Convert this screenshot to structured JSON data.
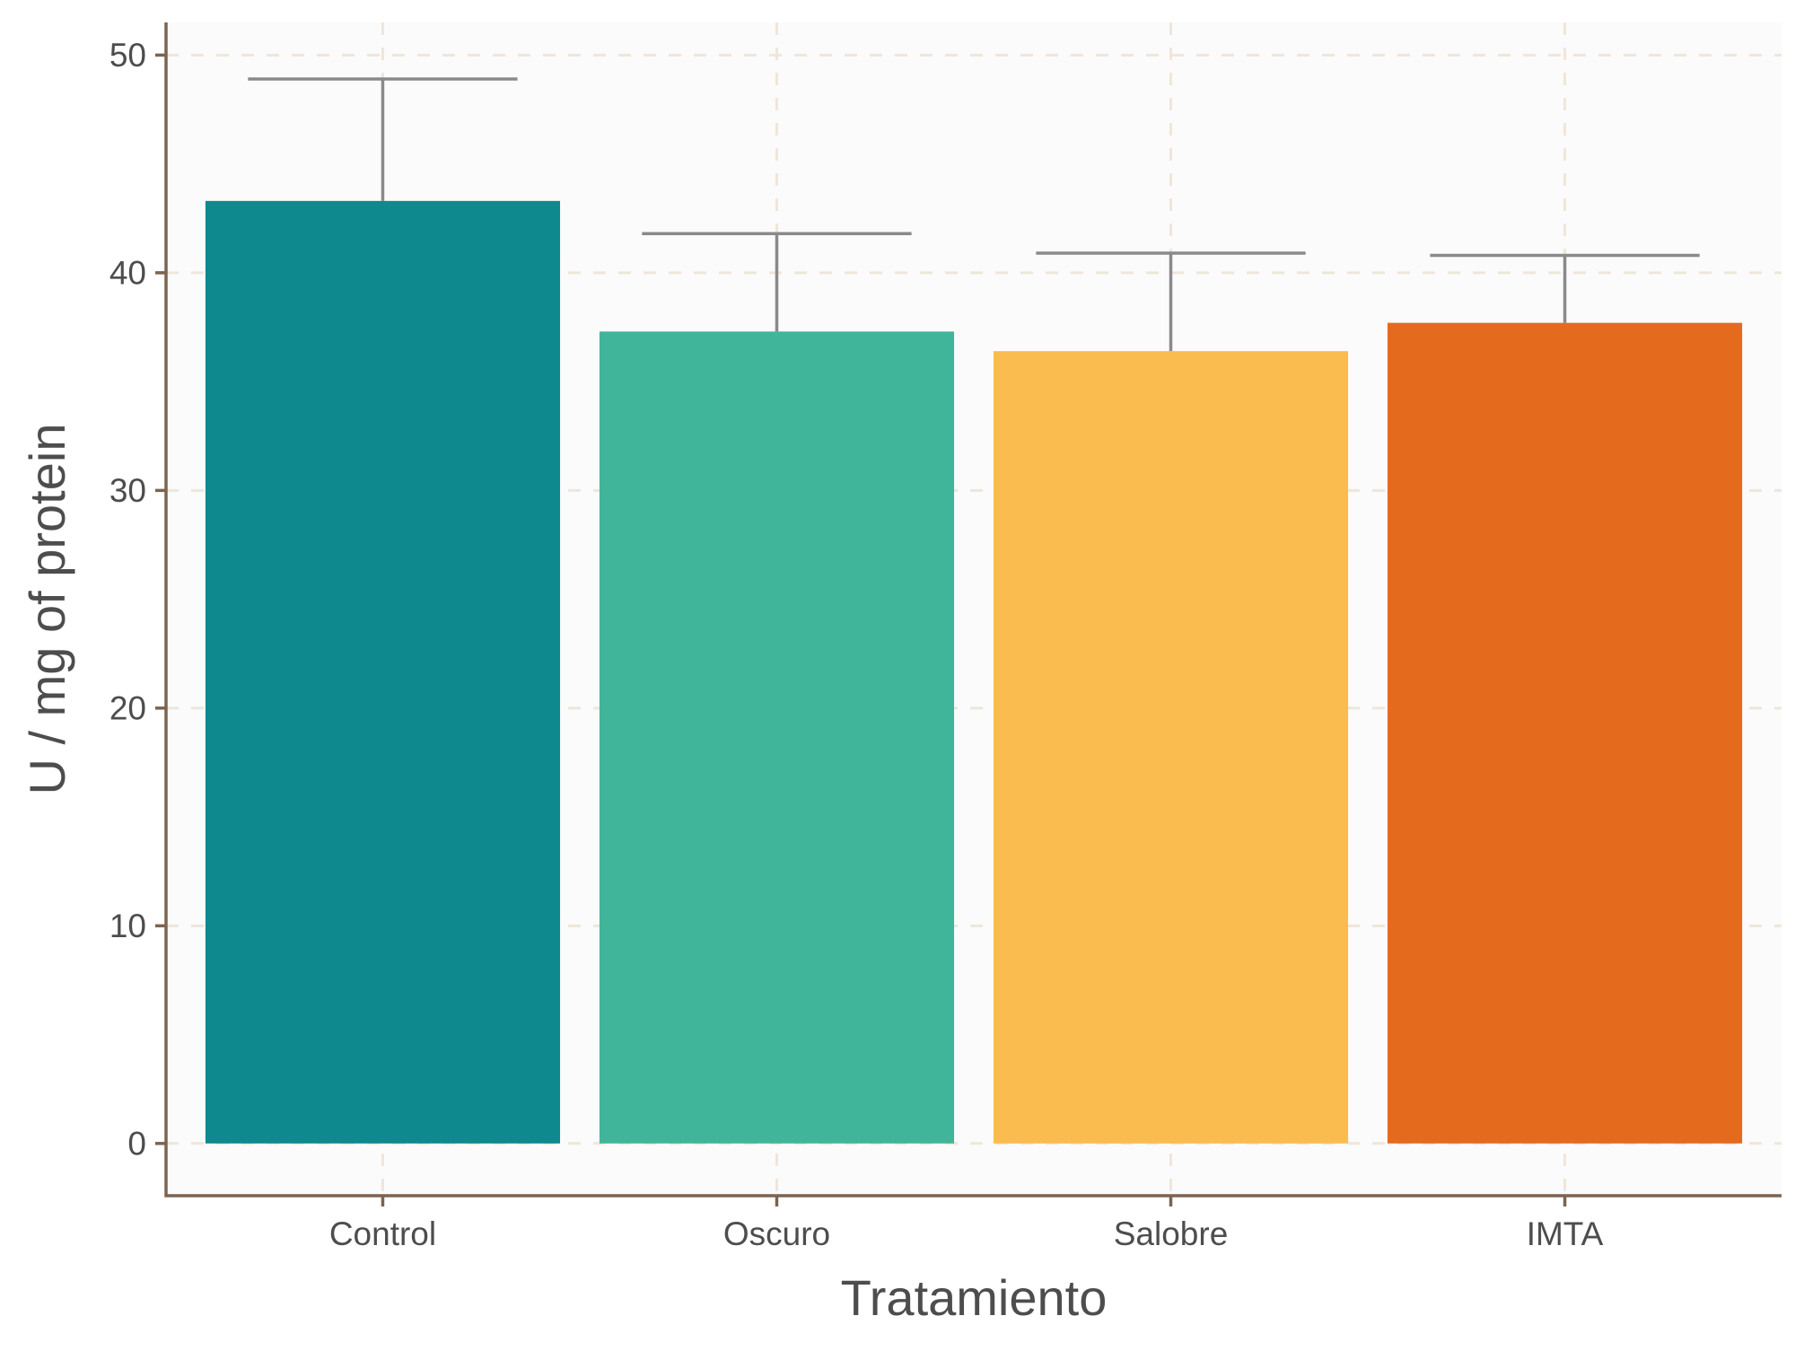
{
  "chart_data": {
    "type": "bar",
    "xlabel": "Tratamiento",
    "ylabel": "U / mg  of protein",
    "categories": [
      "Control",
      "Oscuro",
      "Salobre",
      "IMTA"
    ],
    "values": [
      43.3,
      37.3,
      36.4,
      37.7
    ],
    "error_upper": [
      48.9,
      41.8,
      40.9,
      40.8
    ],
    "colors": [
      "#0E898E",
      "#41B59A",
      "#FBBC4F",
      "#E46A1E"
    ],
    "ylim": [
      -2.4,
      51.5
    ],
    "yticks": [
      0,
      10,
      20,
      30,
      40,
      50
    ],
    "grid": true,
    "grid_style": "dashed",
    "legend": "none",
    "style": {
      "panel_background": "#FBFBFB",
      "grid_color": "#EFE6DA",
      "axis_color": "#7B6450",
      "errorbar_color": "#8A8A8A",
      "text_color": "#4D4D4D"
    }
  }
}
